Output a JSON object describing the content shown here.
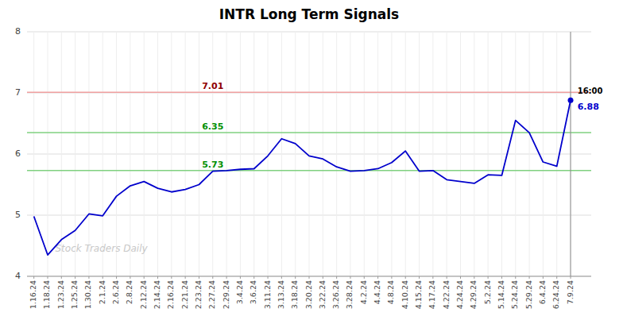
{
  "chart_data": {
    "type": "line",
    "title": "INTR Long Term Signals",
    "watermark": "Stock Traders Daily",
    "categories": [
      "1.16.24",
      "1.18.24",
      "1.23.24",
      "1.25.24",
      "1.30.24",
      "2.1.24",
      "2.6.24",
      "2.8.24",
      "2.12.24",
      "2.14.24",
      "2.16.24",
      "2.21.24",
      "2.23.24",
      "2.27.24",
      "2.29.24",
      "3.4.24",
      "3.6.24",
      "3.11.24",
      "3.13.24",
      "3.18.24",
      "3.20.24",
      "3.22.24",
      "3.26.24",
      "3.28.24",
      "4.2.24",
      "4.4.24",
      "4.8.24",
      "4.10.24",
      "4.15.24",
      "4.17.24",
      "4.22.24",
      "4.24.24",
      "4.29.24",
      "5.2.24",
      "5.14.24",
      "5.24.24",
      "5.29.24",
      "6.4.24",
      "6.24.24",
      "7.9.24"
    ],
    "values": [
      4.98,
      4.35,
      4.6,
      4.75,
      5.02,
      4.99,
      5.31,
      5.48,
      5.55,
      5.44,
      5.38,
      5.42,
      5.5,
      5.72,
      5.73,
      5.75,
      5.76,
      5.97,
      6.25,
      6.17,
      5.97,
      5.92,
      5.79,
      5.72,
      5.73,
      5.76,
      5.86,
      6.05,
      5.72,
      5.73,
      5.58,
      5.55,
      5.52,
      5.66,
      5.65,
      6.55,
      6.35,
      5.87,
      5.8,
      6.88
    ],
    "color": "#0000cc",
    "ylim": [
      4.0,
      8.0
    ],
    "yticks": [
      4,
      5,
      6,
      7,
      8
    ],
    "grid": true,
    "reference_lines": [
      {
        "value": 7.01,
        "color": "#f0a0a0"
      },
      {
        "value": 6.35,
        "color": "#80d080"
      },
      {
        "value": 5.73,
        "color": "#80d080"
      }
    ],
    "last_price": 6.88,
    "last_time": "16:00"
  }
}
